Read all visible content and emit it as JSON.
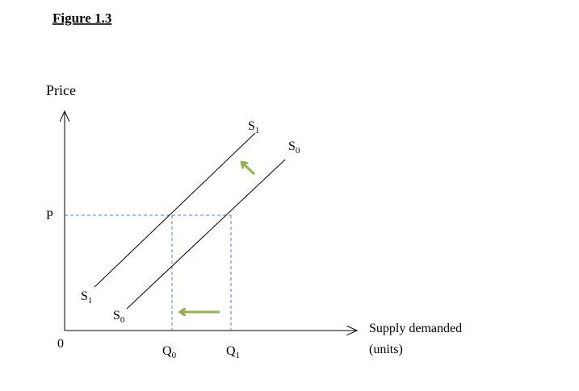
{
  "title": "Figure 1.3",
  "y_axis": {
    "label": "Price",
    "origin": "0",
    "price_level": "P"
  },
  "x_axis": {
    "label_line1": "Supply demanded",
    "label_line2": "(units)",
    "quantities": [
      {
        "base": "Q",
        "sub": "0"
      },
      {
        "base": "Q",
        "sub": "1"
      }
    ]
  },
  "curves": [
    {
      "base": "S",
      "sub": "1"
    },
    {
      "base": "S",
      "sub": "0"
    }
  ]
}
